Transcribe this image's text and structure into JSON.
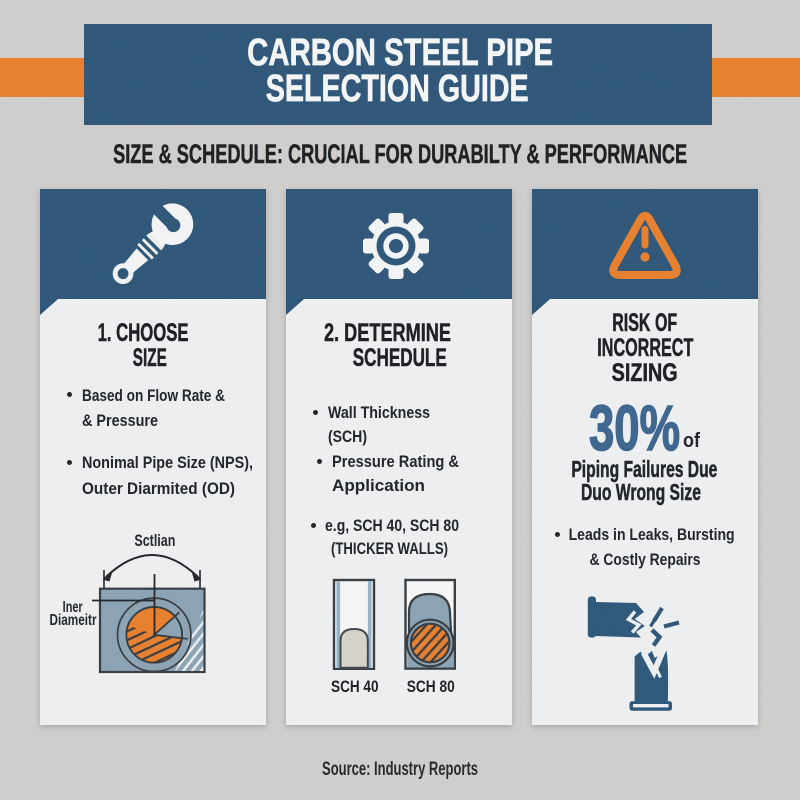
{
  "colors": {
    "background": "#cccbc9",
    "navy": "#2f5779",
    "orange": "#e8802e",
    "card": "#edeff1",
    "ink": "#1d1f23",
    "stat_blue": "#3d6690",
    "diagram_blue_gray": "#8ba3b4",
    "diagram_outline": "#383d42",
    "pipe_wall_blue": "#94b2ca",
    "dome_gray": "#d6d3cb"
  },
  "header": {
    "title_line1": "CARBON STEEL PIPE",
    "title_line2": "SELECTION GUIDE",
    "subtitle": "SIZE & SCHEDULE: CRUCIAL FOR DURABILTY & PERFORMANCE"
  },
  "cards": [
    {
      "icon": "wrench-icon",
      "heading_lines": [
        "1. CHOOSE",
        "SIZE"
      ],
      "bullets": [
        {
          "lines": [
            "Based on Flow Rate &",
            "& Pressure"
          ]
        },
        {
          "lines": [
            "Nonimal Pipe Size (NPS),",
            "Outer Diarmited (OD)"
          ]
        }
      ],
      "diagram": {
        "name": "pipe-cross-section-diagram",
        "top_label": "Sctlian",
        "left_label_lines": [
          "Iner",
          "Diameitr"
        ]
      }
    },
    {
      "icon": "gear-icon",
      "heading_lines": [
        "2. DETERMINE",
        "SCHEDULE"
      ],
      "bullets": [
        {
          "lines": [
            "Wall Thickness",
            "(SCH)"
          ]
        },
        {
          "lines": [
            "Pressure Rating &",
            "Application"
          ]
        },
        {
          "lines": [
            "e.g, SCH 40, SCH 80",
            "(THICKER WALLS)"
          ]
        }
      ],
      "diagram": {
        "name": "pipe-schedule-comparison",
        "labels": [
          "SCH 40",
          "SCH 80"
        ]
      }
    },
    {
      "icon": "warning-icon",
      "heading_lines": [
        "RISK OF",
        "INCORRECT",
        "SIZING"
      ],
      "stat": {
        "value": "30%",
        "suffix": "of"
      },
      "caption_lines": [
        "Piping Failures Due",
        "Duo Wrong Size"
      ],
      "bullets": [
        {
          "lines": [
            "Leads in Leaks, Bursting",
            "& Costly Repairs"
          ]
        }
      ],
      "bottom_icon": "broken-pipe-icon"
    }
  ],
  "footer": {
    "source": "Source: Industry Reports"
  }
}
